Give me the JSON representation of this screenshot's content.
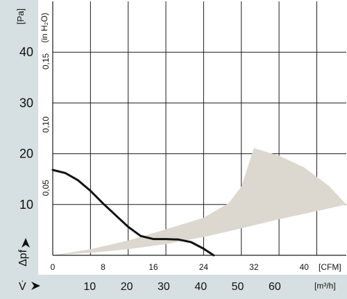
{
  "colors": {
    "axis_band": "#d6dfe1",
    "grid": "#1a1a1a",
    "curve": "#111111",
    "operating_region": "#dcd8cf"
  },
  "chart_data": {
    "type": "line",
    "title": "",
    "y_axis_left": {
      "unit_label": "[Pa]",
      "symbol": "Δpf",
      "ticks": [
        "10",
        "20",
        "30",
        "40"
      ],
      "range": [
        0,
        50
      ]
    },
    "y_axis_inner": {
      "unit_label": "(in H₂O)",
      "ticks": [
        "0,05",
        "0,10",
        "0,15"
      ]
    },
    "x_axis_cfm": {
      "unit_label": "[CFM]",
      "ticks": [
        "0",
        "8",
        "16",
        "24",
        "32",
        "40"
      ],
      "range": [
        0,
        46.7
      ]
    },
    "x_axis_m3h": {
      "symbol": "V̇",
      "unit_label": "[m³/h]",
      "ticks": [
        "10",
        "20",
        "30",
        "40",
        "50",
        "60"
      ]
    },
    "series": [
      {
        "kind": "curve",
        "x_unit": "CFM",
        "y_unit": "Pa",
        "points": [
          [
            0,
            16.8
          ],
          [
            2,
            16.2
          ],
          [
            4,
            14.8
          ],
          [
            6,
            12.7
          ],
          [
            8,
            10.2
          ],
          [
            10,
            7.9
          ],
          [
            12,
            5.6
          ],
          [
            14,
            3.8
          ],
          [
            16,
            3.2
          ],
          [
            18,
            3.2
          ],
          [
            20,
            3.1
          ],
          [
            22,
            2.6
          ],
          [
            24,
            1.3
          ],
          [
            25.6,
            0
          ]
        ]
      },
      {
        "kind": "region",
        "x_unit": "CFM",
        "y_unit": "Pa",
        "upper": [
          [
            0,
            0
          ],
          [
            6,
            1.2
          ],
          [
            12,
            2.9
          ],
          [
            18,
            5.1
          ],
          [
            24,
            7.4
          ],
          [
            28,
            10.3
          ],
          [
            30,
            13.5
          ],
          [
            32,
            21.1
          ],
          [
            36,
            19.6
          ],
          [
            40,
            17.3
          ],
          [
            44,
            13.6
          ],
          [
            46.7,
            10
          ]
        ],
        "lower": [
          [
            46.7,
            10
          ],
          [
            42,
            8.7
          ],
          [
            36,
            7.1
          ],
          [
            30,
            5.3
          ],
          [
            24,
            3.6
          ],
          [
            18,
            2.2
          ],
          [
            12,
            1.2
          ],
          [
            6,
            0.5
          ],
          [
            0,
            0
          ]
        ]
      }
    ],
    "grid": true
  }
}
